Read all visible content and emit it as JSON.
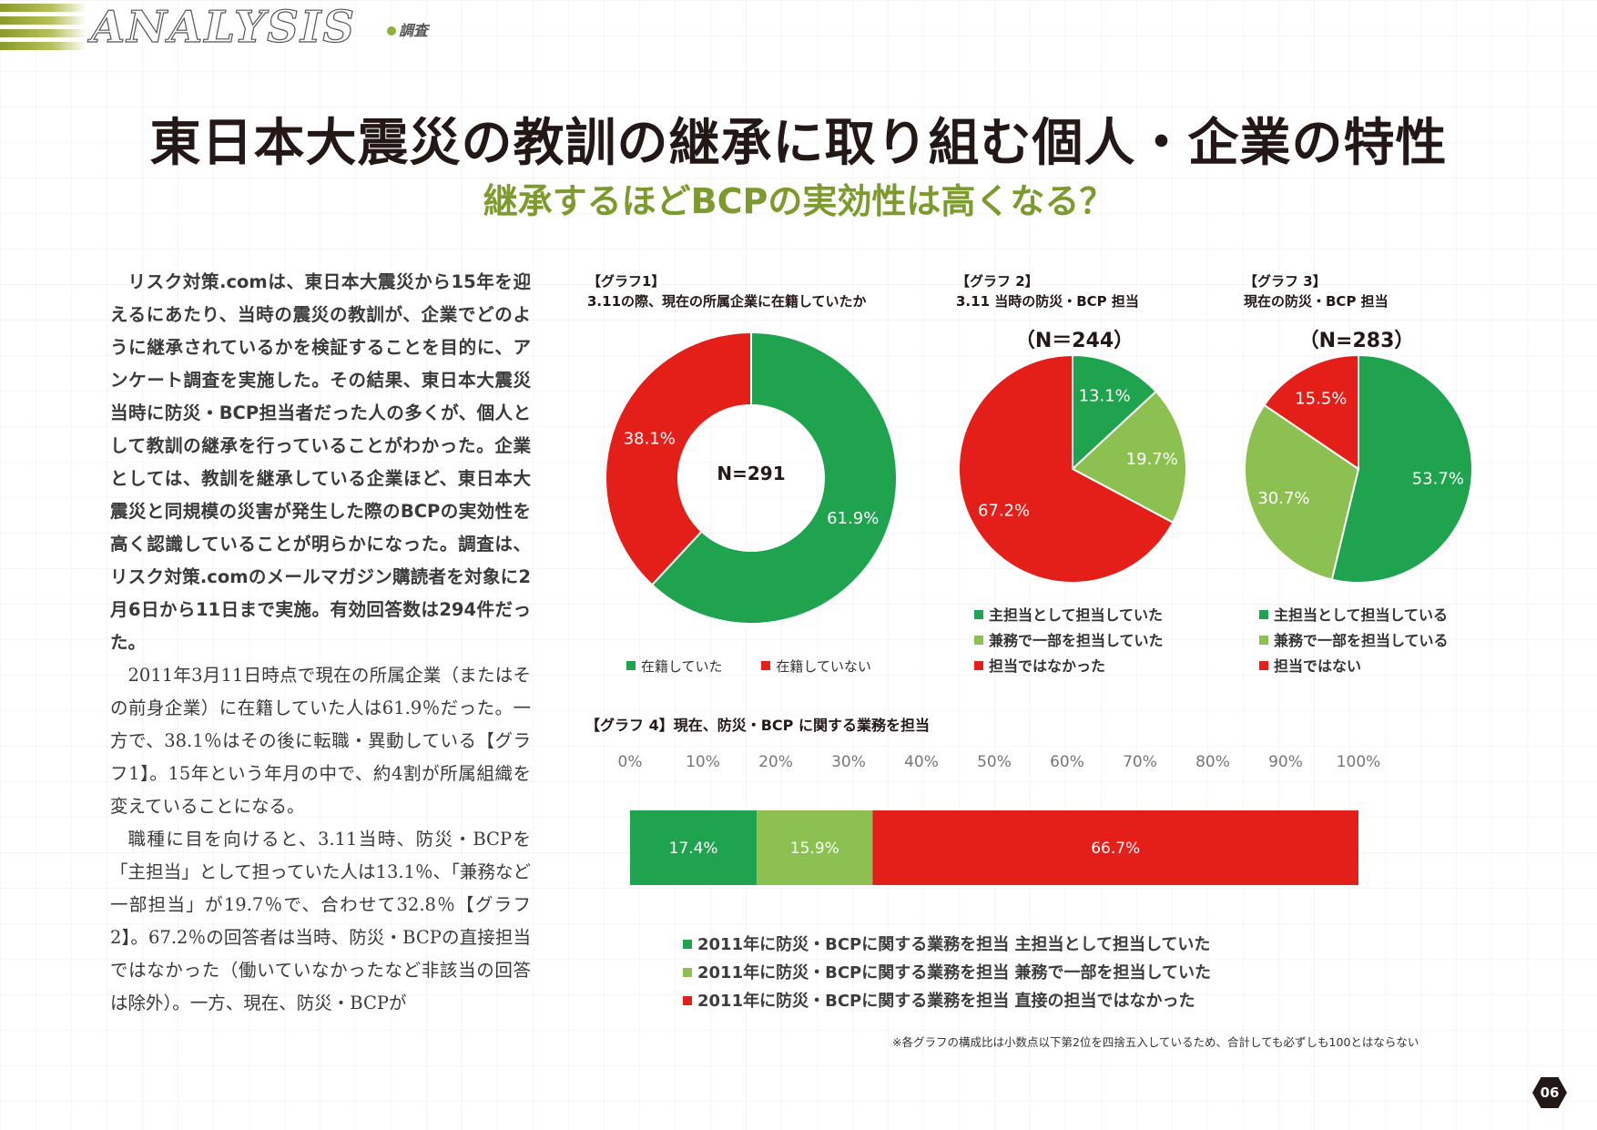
{
  "header": {
    "section": "ANALYSIS",
    "tag": "調査",
    "title": "東日本大震災の教訓の継承に取り組む個人・企業の特性",
    "subtitle": "継承するほどBCPの実効性は高くなる？"
  },
  "article": {
    "lead_lines": [
      "リスク対策.comは、東日本大震災から15年を迎えるにあたり、当時の震災の教訓が、企業でどのように継承されているかを検証することを目的に、アンケート調査を実施した。その結果、東日本大震災当時に防災・BCP担当者だった人の多くが、個人として教訓の継承を行っていることがわかった。企業としては、教訓を継承している企業ほど、東日本大震災と同規模の災害が発生した際のBCPの実効性を高く認識していることが明らかになった。調査は、リスク対策.comのメールマガジン購読者を対象に2月6日から11日まで実施。有効回答数は294件だった。"
    ],
    "body_paragraphs": [
      "2011年3月11日時点で現在の所属企業（またはその前身企業）に在籍していた人は61.9％だった。一方で、38.1％はその後に転職・異動している【グラフ1】。15年という年月の中で、約4割が所属組織を変えていることになる。",
      "職種に目を向けると、3.11当時、防災・BCPを「主担当」として担っていた人は13.1％、「兼務など一部担当」が19.7％で、合わせて32.8％【グラフ2】。67.2％の回答者は当時、防災・BCPの直接担当ではなかった（働いていなかったなど非該当の回答は除外）。一方、現在、防災・BCPが"
    ]
  },
  "colors": {
    "green": "#1fa34f",
    "light_green": "#8cc152",
    "red": "#e41f1a",
    "accent": "#7d9a2e"
  },
  "chart_data": [
    {
      "id": "graph1",
      "type": "pie",
      "donut": true,
      "label": "【グラフ1】",
      "title": "3.11の際、現在の所属企業に在籍していたか",
      "n_label": "N=291",
      "slices": [
        {
          "name": "在籍していた",
          "value": 61.9,
          "label": "61.9%",
          "color": "#1fa34f"
        },
        {
          "name": "在籍していない",
          "value": 38.1,
          "label": "38.1%",
          "color": "#e41f1a"
        }
      ],
      "legend_position": "bottom"
    },
    {
      "id": "graph2",
      "type": "pie",
      "label": "【グラフ 2】",
      "title": "3.11 当時の防災・BCP 担当",
      "n_label": "（N＝244）",
      "slices": [
        {
          "name": "主担当として担当していた",
          "value": 13.1,
          "label": "13.1%",
          "color": "#1fa34f"
        },
        {
          "name": "兼務で一部を担当していた",
          "value": 19.7,
          "label": "19.7%",
          "color": "#8cc152"
        },
        {
          "name": "担当ではなかった",
          "value": 67.2,
          "label": "67.2%",
          "color": "#e41f1a"
        }
      ],
      "legend_position": "bottom"
    },
    {
      "id": "graph3",
      "type": "pie",
      "label": "【グラフ 3】",
      "title": "現在の防災・BCP 担当",
      "n_label": "（N=283）",
      "slices": [
        {
          "name": "主担当として担当している",
          "value": 53.7,
          "label": "53.7%",
          "color": "#1fa34f"
        },
        {
          "name": "兼務で一部を担当している",
          "value": 30.7,
          "label": "30.7%",
          "color": "#8cc152"
        },
        {
          "name": "担当ではない",
          "value": 15.5,
          "label": "15.5%",
          "color": "#e41f1a"
        }
      ],
      "legend_position": "bottom"
    },
    {
      "id": "graph4",
      "type": "bar",
      "stacked": true,
      "orientation": "horizontal",
      "label": "【グラフ 4】",
      "title": "現在、防災・BCP に関する業務を担当",
      "xlim": [
        0,
        100
      ],
      "ticks": [
        "0%",
        "10%",
        "20%",
        "30%",
        "40%",
        "50%",
        "60%",
        "70%",
        "80%",
        "90%",
        "100%"
      ],
      "series": [
        {
          "name": "2011年に防災・BCPに関する業務を担当 主担当として担当していた",
          "value": 17.4,
          "label": "17.4%",
          "color": "#1fa34f"
        },
        {
          "name": "2011年に防災・BCPに関する業務を担当 兼務で一部を担当していた",
          "value": 15.9,
          "label": "15.9%",
          "color": "#8cc152"
        },
        {
          "name": "2011年に防災・BCPに関する業務を担当 直接の担当ではなかった",
          "value": 66.7,
          "label": "66.7%",
          "color": "#e41f1a"
        }
      ],
      "legend_position": "bottom",
      "grid": false
    }
  ],
  "footnote": "※各グラフの構成比は小数点以下第2位を四捨五入しているため、合計しても必ずしも100とはならない",
  "page_number": "06"
}
